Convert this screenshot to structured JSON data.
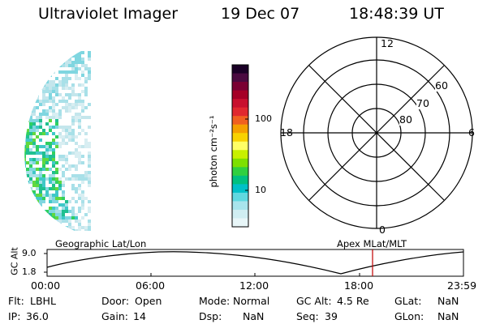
{
  "header": {
    "instrument": "Ultraviolet Imager",
    "date": "19 Dec 07",
    "time": "18:48:39 UT"
  },
  "colorbar": {
    "unit_label": "photon cm⁻²s⁻¹",
    "ticks": [
      "100",
      "10"
    ],
    "colors": [
      "#1a0026",
      "#4a0a40",
      "#7a0033",
      "#a50026",
      "#c8102e",
      "#e0282f",
      "#f06020",
      "#f5a000",
      "#f8d200",
      "#ffff66",
      "#c8f000",
      "#7ee000",
      "#30d040",
      "#00c080",
      "#00c0c8",
      "#60d8e0",
      "#a8e4ec",
      "#d0eef2",
      "#e8f6f8"
    ]
  },
  "polar_plot": {
    "mlt_labels": {
      "top": "12",
      "left": "18",
      "right": "6",
      "bottom": "0"
    },
    "lat_labels": [
      "60",
      "70",
      "80"
    ]
  },
  "timeline": {
    "y_label": "GC Alt",
    "y_ticks": [
      "9.0",
      "1.8"
    ],
    "left_title": "Geographic Lat/Lon",
    "right_title": "Apex  MLat/MLT",
    "x_ticks": [
      "00:00",
      "06:00",
      "12:00",
      "18:00",
      "23:59"
    ],
    "marker_color": "#c00000"
  },
  "info": {
    "row1": {
      "flt_label": "Flt:",
      "flt_value": "LBHL",
      "door_label": "Door:",
      "door_value": "Open",
      "mode_label": "Mode:",
      "mode_value": "Normal",
      "gcalt_label": "GC Alt:",
      "gcalt_value": "4.5 Re",
      "glat_label": "GLat:",
      "glat_value": "NaN"
    },
    "row2": {
      "ip_label": "IP:",
      "ip_value": "36.0",
      "gain_label": "Gain:",
      "gain_value": "14",
      "dsp_label": "Dsp:",
      "dsp_value": "NaN",
      "seq_label": "Seq:",
      "seq_value": "39",
      "glon_label": "GLon:",
      "glon_value": "NaN"
    }
  }
}
